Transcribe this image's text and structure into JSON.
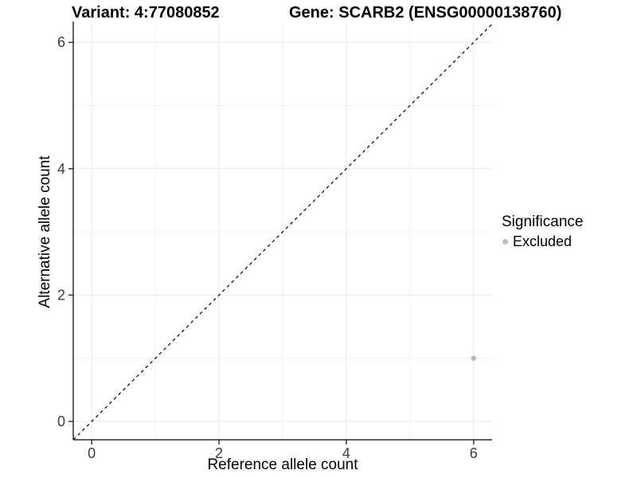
{
  "chart_data": {
    "type": "scatter",
    "titles": {
      "variant": "Variant: 4:77080852",
      "gene": "Gene: SCARB2 (ENSG00000138760)"
    },
    "xlabel": "Reference allele count",
    "ylabel": "Alternative allele count",
    "xlim": [
      -0.29,
      6.29
    ],
    "ylim": [
      -0.29,
      6.33
    ],
    "x_ticks": [
      0,
      2,
      4,
      6
    ],
    "y_ticks": [
      0,
      2,
      4,
      6
    ],
    "x_minor_ticks": [
      1,
      3,
      5
    ],
    "y_minor_ticks": [
      1,
      3,
      5
    ],
    "grid": true,
    "series": [
      {
        "name": "Excluded",
        "color": "#bcbcbc",
        "points": [
          {
            "x": 6,
            "y": 1
          }
        ]
      }
    ],
    "reference_line": {
      "equation": "y = x",
      "style": "dashed",
      "color": "#000000"
    },
    "legend": {
      "title": "Significance",
      "position": "right",
      "items": [
        {
          "label": "Excluded",
          "color": "#bcbcbc"
        }
      ]
    },
    "colors": {
      "grid_major": "#e7e7e7",
      "grid_minor": "#f2f2f2",
      "axis": "#2b2b2b",
      "tick_label": "#3d3d3d",
      "background": "#ffffff"
    }
  }
}
